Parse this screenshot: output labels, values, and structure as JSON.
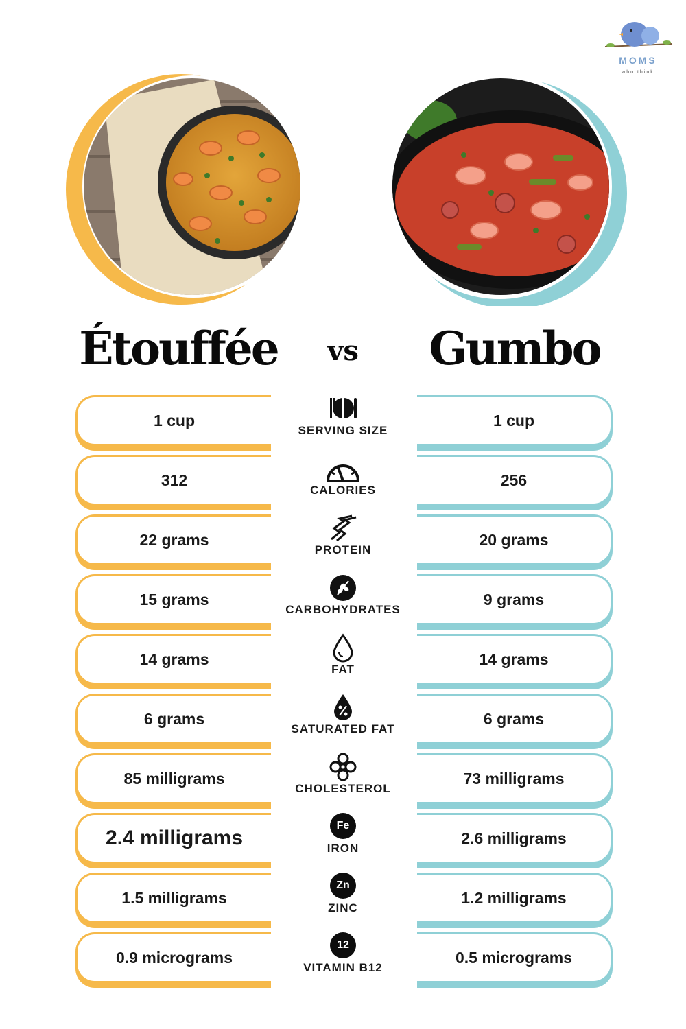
{
  "brand": {
    "logo_letters": "MOMS",
    "logo_tagline": "who think"
  },
  "header": {
    "left_title": "Étouffée",
    "vs": "vs",
    "right_title": "Gumbo"
  },
  "colors": {
    "left_accent": "#f6b94a",
    "right_accent": "#8fd0d6"
  },
  "rows": [
    {
      "label": "SERVING SIZE",
      "icon": "utensils-plate-icon",
      "left": "1 cup",
      "right": "1 cup"
    },
    {
      "label": "CALORIES",
      "icon": "gauge-icon",
      "left": "312",
      "right": "256"
    },
    {
      "label": "PROTEIN",
      "icon": "protein-helix-icon",
      "left": "22 grams",
      "right": "20 grams"
    },
    {
      "label": "CARBOHYDRATES",
      "icon": "wheat-icon",
      "left": "15 grams",
      "right": "9 grams"
    },
    {
      "label": "FAT",
      "icon": "drop-icon",
      "left": "14 grams",
      "right": "14 grams"
    },
    {
      "label": "SATURATED FAT",
      "icon": "percent-drop-icon",
      "left": "6 grams",
      "right": "6 grams"
    },
    {
      "label": "CHOLESTEROL",
      "icon": "molecule-icon",
      "left": "85 milligrams",
      "right": "73 milligrams"
    },
    {
      "label": "IRON",
      "icon": "fe-element-icon",
      "symbol": "Fe",
      "left": "2.4 milligrams",
      "right": "2.6 milligrams"
    },
    {
      "label": "ZINC",
      "icon": "zn-element-icon",
      "symbol": "Zn",
      "left": "1.5 milligrams",
      "right": "1.2 milligrams"
    },
    {
      "label": "VITAMIN B12",
      "icon": "b12-icon",
      "symbol": "12",
      "left": "0.9 micrograms",
      "right": "0.5 micrograms"
    }
  ]
}
